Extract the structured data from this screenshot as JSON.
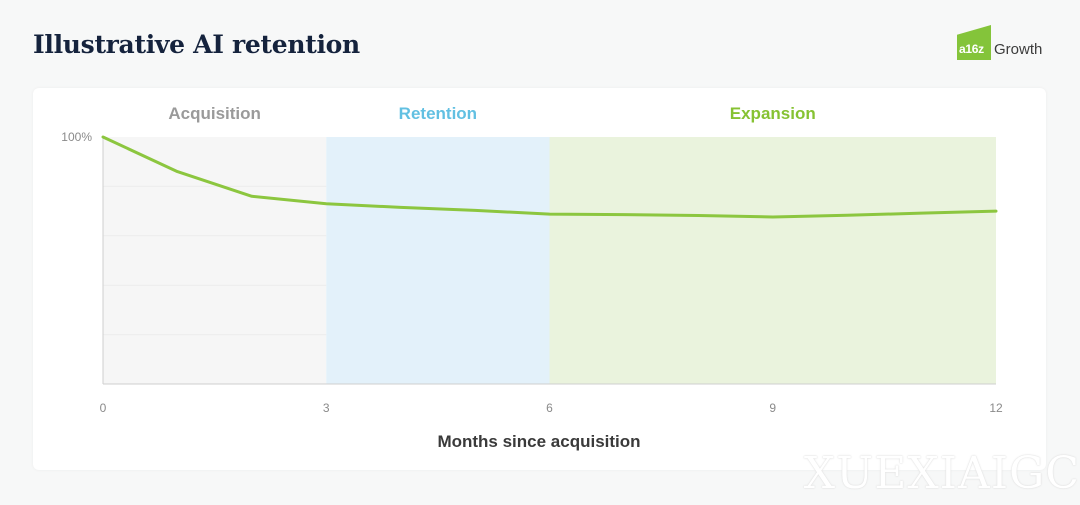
{
  "header": {
    "title": "Illustrative AI retention",
    "logo_mark": "a16z",
    "logo_word": "Growth"
  },
  "watermark": "XUEXIAIGC",
  "chart_data": {
    "type": "line",
    "title": "Illustrative AI retention",
    "xlabel": "Months since acquisition",
    "ylabel": "",
    "xlim": [
      0,
      12
    ],
    "ylim": [
      0,
      100
    ],
    "x_ticks": [
      0,
      3,
      6,
      9,
      12
    ],
    "y_ticks": [
      {
        "value": 100,
        "label": "100%"
      }
    ],
    "gridlines": [
      80,
      60,
      40,
      20
    ],
    "grid": true,
    "legend": "none",
    "phases": [
      {
        "name": "Acquisition",
        "start": 0,
        "end": 3,
        "fill": "#f6f6f6",
        "label_color": "#9a9a9a"
      },
      {
        "name": "Retention",
        "start": 3,
        "end": 6,
        "fill": "#e3f1fa",
        "label_color": "#62c0e2"
      },
      {
        "name": "Expansion",
        "start": 6,
        "end": 12,
        "fill": "#eaf3dd",
        "label_color": "#86c232"
      }
    ],
    "series": [
      {
        "color": "#8cc63f",
        "x": [
          0,
          1,
          2,
          3,
          4,
          5,
          6,
          7,
          8,
          9,
          10,
          11,
          12
        ],
        "values": [
          100,
          86,
          76,
          73,
          71.5,
          70.3,
          68.8,
          68.6,
          68.2,
          67.6,
          68.3,
          69.2,
          70
        ]
      }
    ]
  }
}
